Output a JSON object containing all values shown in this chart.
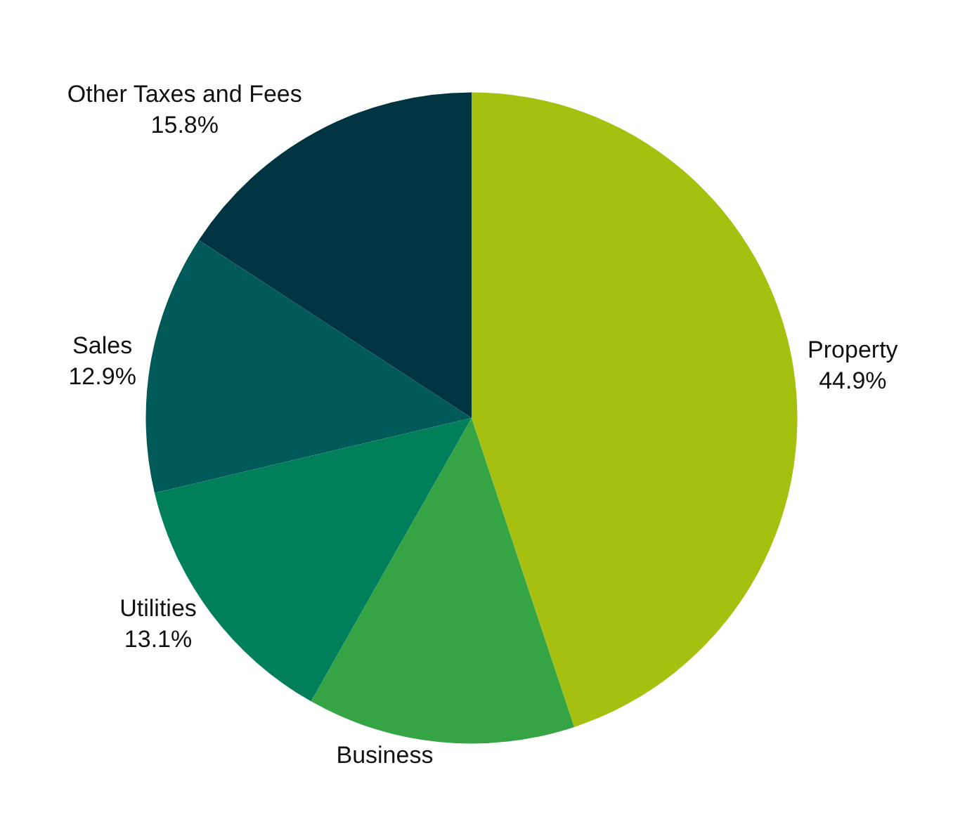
{
  "chart_data": {
    "type": "pie",
    "categories": [
      "Property",
      "Business",
      "Utilities",
      "Sales",
      "Other Taxes and Fees"
    ],
    "values": [
      44.9,
      13.3,
      13.1,
      12.9,
      15.8
    ],
    "value_labels": [
      "44.9%",
      null,
      "13.1%",
      "12.9%",
      "15.8%"
    ],
    "colors": [
      "#a5c00f",
      "#34a444",
      "#007f5a",
      "#005a58",
      "#003441"
    ],
    "legend": false
  }
}
